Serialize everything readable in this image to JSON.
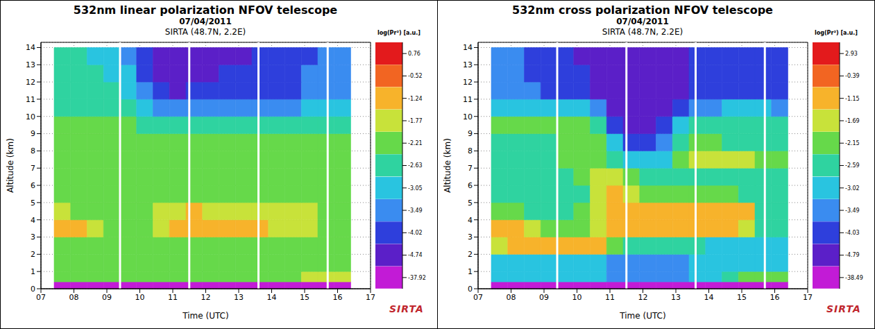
{
  "chart_data": [
    {
      "type": "heatmap",
      "title": "532nm linear polarization NFOV telescope",
      "subtitle": [
        "07/04/2011",
        "SIRTA (48.7N, 2.2E)"
      ],
      "logo": "SIRTA",
      "x_label": "Time (UTC)",
      "y_label": "Altitude (km)",
      "xlim": [
        7,
        17
      ],
      "xticks": [
        {
          "value": 7,
          "label": "07"
        },
        {
          "value": 8,
          "label": "08"
        },
        {
          "value": 9,
          "label": "09"
        },
        10,
        11,
        12,
        13,
        14,
        15,
        16,
        17
      ],
      "ylim": [
        0,
        14.3
      ],
      "yticks": [
        0,
        1,
        2,
        3,
        4,
        5,
        6,
        7,
        8,
        9,
        10,
        11,
        12,
        13,
        14
      ],
      "grid": true,
      "gaps": [
        9.4,
        11.5,
        13.6,
        15.7
      ],
      "x_edges": [
        7.4,
        7.9,
        8.4,
        8.9,
        9.4,
        9.9,
        10.4,
        10.9,
        11.4,
        11.9,
        12.4,
        12.9,
        13.4,
        13.9,
        14.4,
        14.9,
        15.4,
        15.9,
        16.4
      ],
      "y_edges": [
        0,
        0.4,
        1,
        2,
        3,
        4,
        5,
        6,
        7,
        8,
        9,
        10,
        11,
        12,
        13,
        14
      ],
      "z": [
        [
          -37,
          -37,
          -37,
          -37,
          -37,
          -37,
          -37,
          -37,
          -37,
          -37,
          -37,
          -37,
          -37,
          -37,
          -37,
          -37,
          -37,
          -37
        ],
        [
          -2.0,
          -2.0,
          -2.0,
          -2.0,
          -2.0,
          -2.0,
          -2.0,
          -2.0,
          -2.0,
          -2.0,
          -2.0,
          -2.0,
          -2.0,
          -2.0,
          -1.9,
          -1.6,
          -1.5,
          -1.6
        ],
        [
          -2.0,
          -2.0,
          -2.0,
          -2.0,
          -2.0,
          -2.0,
          -2.0,
          -2.0,
          -2.0,
          -2.0,
          -2.0,
          -2.0,
          -2.0,
          -2.0,
          -2.0,
          -2.0,
          -2.0,
          -2.0
        ],
        [
          -1.9,
          -1.9,
          -2.0,
          -2.0,
          -2.0,
          -2.0,
          -2.0,
          -2.0,
          -2.0,
          -2.0,
          -2.0,
          -2.0,
          -2.0,
          -2.0,
          -2.0,
          -2.0,
          -2.0,
          -2.0
        ],
        [
          -1.0,
          -1.1,
          -1.6,
          -1.9,
          -2.0,
          -1.9,
          -1.4,
          -0.9,
          -0.8,
          -0.8,
          -0.9,
          -0.9,
          -1.1,
          -1.3,
          -1.4,
          -1.5,
          -1.9,
          -2.0
        ],
        [
          -1.3,
          -1.8,
          -1.9,
          -2.0,
          -2.0,
          -1.9,
          -1.4,
          -1.3,
          -1.2,
          -1.3,
          -1.3,
          -1.3,
          -1.4,
          -1.3,
          -1.3,
          -1.5,
          -1.9,
          -2.0
        ],
        [
          -2.0,
          -2.0,
          -2.0,
          -2.0,
          -2.0,
          -1.9,
          -1.8,
          -1.9,
          -2.0,
          -2.0,
          -2.0,
          -2.0,
          -2.0,
          -2.0,
          -2.0,
          -2.0,
          -2.1,
          -2.1
        ],
        [
          -2.0,
          -2.0,
          -2.0,
          -2.0,
          -2.0,
          -2.0,
          -2.0,
          -2.1,
          -2.1,
          -2.1,
          -2.1,
          -2.1,
          -2.1,
          -2.1,
          -2.1,
          -2.1,
          -2.1,
          -2.1
        ],
        [
          -2.0,
          -2.0,
          -2.0,
          -2.0,
          -2.0,
          -2.1,
          -2.1,
          -2.1,
          -2.1,
          -2.1,
          -2.1,
          -2.1,
          -2.1,
          -2.1,
          -2.1,
          -2.1,
          -2.1,
          -2.1
        ],
        [
          -2.0,
          -2.0,
          -2.0,
          -2.0,
          -2.1,
          -2.1,
          -2.2,
          -2.2,
          -2.2,
          -2.2,
          -2.2,
          -2.2,
          -2.2,
          -2.2,
          -2.2,
          -2.2,
          -2.2,
          -2.2
        ],
        [
          -2.1,
          -2.1,
          -2.1,
          -2.1,
          -2.2,
          -2.3,
          -2.5,
          -2.6,
          -2.5,
          -2.5,
          -2.5,
          -2.5,
          -2.5,
          -2.5,
          -2.5,
          -2.5,
          -2.5,
          -2.5
        ],
        [
          -2.3,
          -2.3,
          -2.3,
          -2.4,
          -2.5,
          -2.8,
          -3.2,
          -3.4,
          -3.3,
          -3.2,
          -3.2,
          -3.2,
          -3.2,
          -3.1,
          -3.1,
          -2.9,
          -2.9,
          -2.9
        ],
        [
          -2.4,
          -2.4,
          -2.5,
          -2.6,
          -2.8,
          -3.3,
          -3.8,
          -4.1,
          -4.0,
          -3.9,
          -3.8,
          -3.7,
          -3.7,
          -3.6,
          -3.5,
          -3.2,
          -3.1,
          -3.1
        ],
        [
          -2.5,
          -2.5,
          -2.6,
          -2.7,
          -3.0,
          -3.6,
          -4.1,
          -4.2,
          -4.2,
          -4.1,
          -4.0,
          -3.9,
          -3.8,
          -3.8,
          -3.7,
          -3.4,
          -3.2,
          -3.2
        ],
        [
          -2.6,
          -2.6,
          -2.7,
          -2.9,
          -3.2,
          -3.8,
          -4.2,
          -4.3,
          -4.3,
          -4.2,
          -4.1,
          -4.1,
          -4.0,
          -3.9,
          -3.9,
          -3.6,
          -3.3,
          -3.3
        ]
      ],
      "colorbar": {
        "label": "log(Pr²) [a.u.]",
        "ticks": [
          0.76,
          -0.52,
          -1.24,
          -1.77,
          -2.21,
          -2.63,
          -3.05,
          -3.49,
          -4.02,
          -4.74,
          -37.92
        ],
        "colors": [
          "#e31a1c",
          "#f26522",
          "#f7b32b",
          "#c8e23a",
          "#66d94a",
          "#2fd3a0",
          "#29c4e0",
          "#3a8cf0",
          "#2e3fdc",
          "#5b1fc8",
          "#c21bd6"
        ]
      }
    },
    {
      "type": "heatmap",
      "title": "532nm cross polarization NFOV telescope",
      "subtitle": [
        "07/04/2011",
        "SIRTA (48.7N, 2.2E)"
      ],
      "logo": "SIRTA",
      "x_label": "Time (UTC)",
      "y_label": "Altitude (km)",
      "xlim": [
        7,
        17
      ],
      "xticks": [
        {
          "value": 7,
          "label": "07"
        },
        {
          "value": 8,
          "label": "08"
        },
        {
          "value": 9,
          "label": "09"
        },
        10,
        11,
        12,
        13,
        14,
        15,
        16,
        17
      ],
      "ylim": [
        0,
        14.3
      ],
      "yticks": [
        0,
        1,
        2,
        3,
        4,
        5,
        6,
        7,
        8,
        9,
        10,
        11,
        12,
        13,
        14
      ],
      "grid": true,
      "gaps": [
        9.4,
        11.5,
        13.6,
        15.7
      ],
      "x_edges": [
        7.4,
        7.9,
        8.4,
        8.9,
        9.4,
        9.9,
        10.4,
        10.9,
        11.4,
        11.9,
        12.4,
        12.9,
        13.4,
        13.9,
        14.4,
        14.9,
        15.4,
        15.9,
        16.4
      ],
      "y_edges": [
        0,
        0.4,
        1,
        2,
        3,
        4,
        5,
        6,
        7,
        8,
        9,
        10,
        11,
        12,
        13,
        14
      ],
      "z": [
        [
          -38,
          -38,
          -38,
          -38,
          -38,
          -38,
          -38,
          -38,
          -38,
          -38,
          -38,
          -38,
          -38,
          -38,
          -38,
          -38,
          -38,
          -38
        ],
        [
          -2.9,
          -2.9,
          -2.9,
          -2.9,
          -2.9,
          -2.9,
          -3.0,
          -3.1,
          -3.2,
          -3.2,
          -3.2,
          -3.1,
          -3.0,
          -2.9,
          -2.4,
          -2.0,
          -1.9,
          -2.0
        ],
        [
          -2.7,
          -2.7,
          -2.6,
          -2.6,
          -2.7,
          -2.7,
          -2.8,
          -3.1,
          -3.3,
          -3.4,
          -3.3,
          -3.2,
          -2.9,
          -2.8,
          -2.8,
          -2.7,
          -2.7,
          -2.7
        ],
        [
          -1.6,
          -0.9,
          -0.7,
          -0.8,
          -0.8,
          -0.8,
          -0.9,
          -2.0,
          -2.4,
          -2.5,
          -2.5,
          -2.4,
          -2.5,
          -2.6,
          -2.6,
          -2.6,
          -2.6,
          -2.6
        ],
        [
          -0.7,
          -0.9,
          -1.6,
          -1.9,
          -2.0,
          -1.8,
          -1.3,
          -0.9,
          -0.5,
          -0.4,
          -0.4,
          -0.5,
          -0.6,
          -0.6,
          -0.7,
          -1.2,
          -2.3,
          -2.4
        ],
        [
          -1.9,
          -2.1,
          -2.2,
          -2.2,
          -2.2,
          -1.8,
          -1.3,
          -1.0,
          -0.7,
          -0.5,
          -0.5,
          -0.5,
          -0.6,
          -0.5,
          -0.6,
          -1.0,
          -2.2,
          -2.4
        ],
        [
          -2.4,
          -2.4,
          -2.4,
          -2.5,
          -2.4,
          -2.2,
          -1.2,
          -0.8,
          -1.3,
          -1.8,
          -1.9,
          -1.8,
          -1.7,
          -1.8,
          -2.0,
          -2.2,
          -2.4,
          -2.5
        ],
        [
          -2.4,
          -2.3,
          -2.3,
          -2.4,
          -2.3,
          -2.1,
          -1.5,
          -1.2,
          -2.0,
          -2.4,
          -2.5,
          -2.3,
          -2.2,
          -2.3,
          -2.3,
          -2.2,
          -2.3,
          -2.4
        ],
        [
          -2.3,
          -2.3,
          -2.3,
          -2.3,
          -2.1,
          -2.0,
          -1.9,
          -2.2,
          -2.8,
          -2.9,
          -2.6,
          -2.1,
          -1.6,
          -1.4,
          -1.4,
          -1.5,
          -1.7,
          -1.9
        ],
        [
          -2.3,
          -2.3,
          -2.2,
          -2.2,
          -2.0,
          -1.9,
          -2.0,
          -2.6,
          -3.5,
          -3.6,
          -3.2,
          -2.4,
          -2.1,
          -2.1,
          -2.2,
          -2.2,
          -2.2,
          -2.2
        ],
        [
          -1.9,
          -1.9,
          -1.9,
          -2.0,
          -1.9,
          -1.9,
          -2.3,
          -3.5,
          -4.1,
          -4.2,
          -3.8,
          -2.8,
          -2.3,
          -2.3,
          -2.2,
          -2.2,
          -2.3,
          -2.4
        ],
        [
          -2.7,
          -2.7,
          -2.8,
          -2.8,
          -2.9,
          -3.0,
          -3.4,
          -4.3,
          -4.5,
          -4.5,
          -4.4,
          -3.8,
          -3.3,
          -3.1,
          -3.0,
          -3.0,
          -3.0,
          -3.1
        ],
        [
          -3.3,
          -3.3,
          -3.4,
          -3.5,
          -3.6,
          -3.8,
          -4.3,
          -4.6,
          -4.6,
          -4.6,
          -4.5,
          -4.2,
          -3.8,
          -3.6,
          -3.5,
          -3.5,
          -3.5,
          -3.5
        ],
        [
          -3.4,
          -3.4,
          -3.5,
          -3.6,
          -3.7,
          -4.0,
          -4.4,
          -4.6,
          -4.6,
          -4.6,
          -4.5,
          -4.3,
          -3.9,
          -3.7,
          -3.6,
          -3.6,
          -3.6,
          -3.6
        ],
        [
          -3.4,
          -3.4,
          -3.5,
          -3.6,
          -3.8,
          -4.1,
          -4.4,
          -4.6,
          -4.6,
          -4.6,
          -4.5,
          -4.3,
          -4.0,
          -3.8,
          -3.7,
          -3.7,
          -3.6,
          -3.6
        ]
      ],
      "colorbar": {
        "label": "log(Pr²) [a.u.]",
        "ticks": [
          2.93,
          -0.39,
          -1.15,
          -1.69,
          -2.15,
          -2.59,
          -3.02,
          -3.49,
          -4.03,
          -4.79,
          -38.49
        ],
        "colors": [
          "#e31a1c",
          "#f26522",
          "#f7b32b",
          "#c8e23a",
          "#66d94a",
          "#2fd3a0",
          "#29c4e0",
          "#3a8cf0",
          "#2e3fdc",
          "#5b1fc8",
          "#c21bd6"
        ]
      }
    }
  ]
}
